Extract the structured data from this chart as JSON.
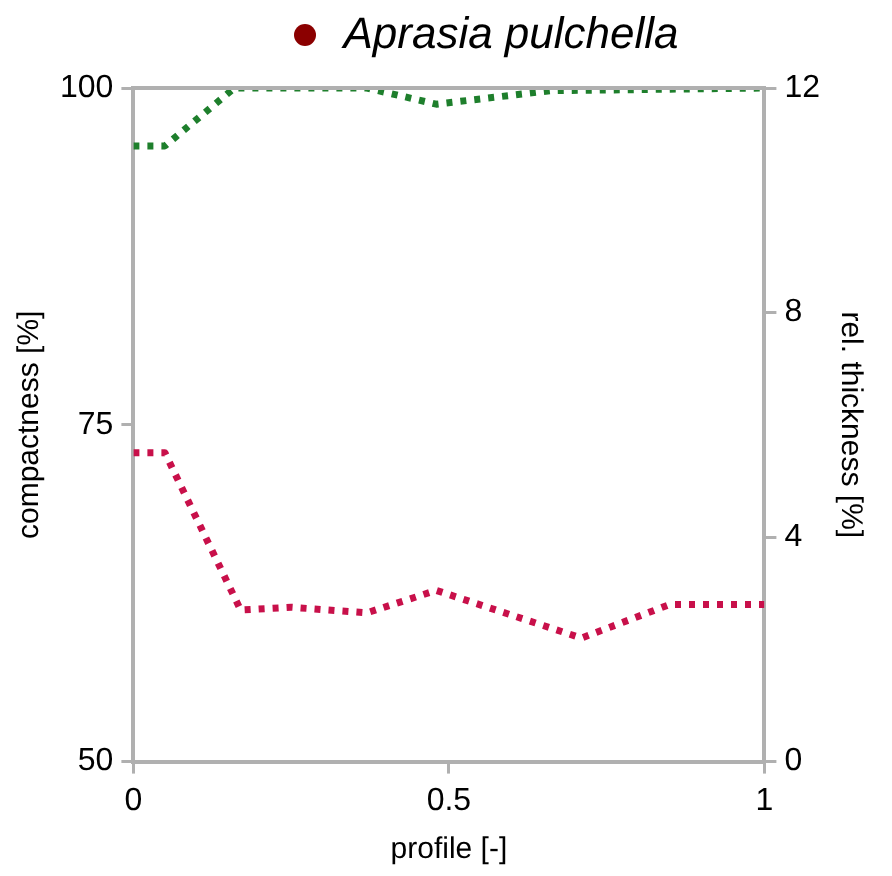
{
  "chart_data": {
    "type": "line",
    "title": "Aprasia pulchella",
    "xlabel": "profile [-]",
    "ylabel": "compactness [%]",
    "y2label": "rel. thickness [%]",
    "xlim": [
      0,
      1
    ],
    "xticks": [
      0,
      0.5,
      1
    ],
    "ylim": [
      50,
      100
    ],
    "yticks": [
      50,
      75,
      100
    ],
    "y2lim": [
      0,
      12
    ],
    "y2ticks": [
      0,
      4,
      8,
      12
    ],
    "grid": false,
    "legend": false,
    "marker": "none",
    "line_style": "dotted",
    "series": [
      {
        "color": "#1e7f2c",
        "x": [
          0,
          0.05,
          0.16,
          0.37,
          0.48,
          0.66,
          1
        ],
        "values": [
          95.7,
          95.7,
          100,
          100,
          98.8,
          99.8,
          100
        ]
      },
      {
        "color": "#c8104a",
        "axis": "y2",
        "x": [
          0,
          0.05,
          0.17,
          0.25,
          0.37,
          0.48,
          0.71,
          0.85,
          1
        ],
        "values": [
          5.5,
          5.5,
          2.7,
          2.75,
          2.65,
          3.05,
          2.2,
          2.8,
          2.8
        ]
      }
    ]
  }
}
